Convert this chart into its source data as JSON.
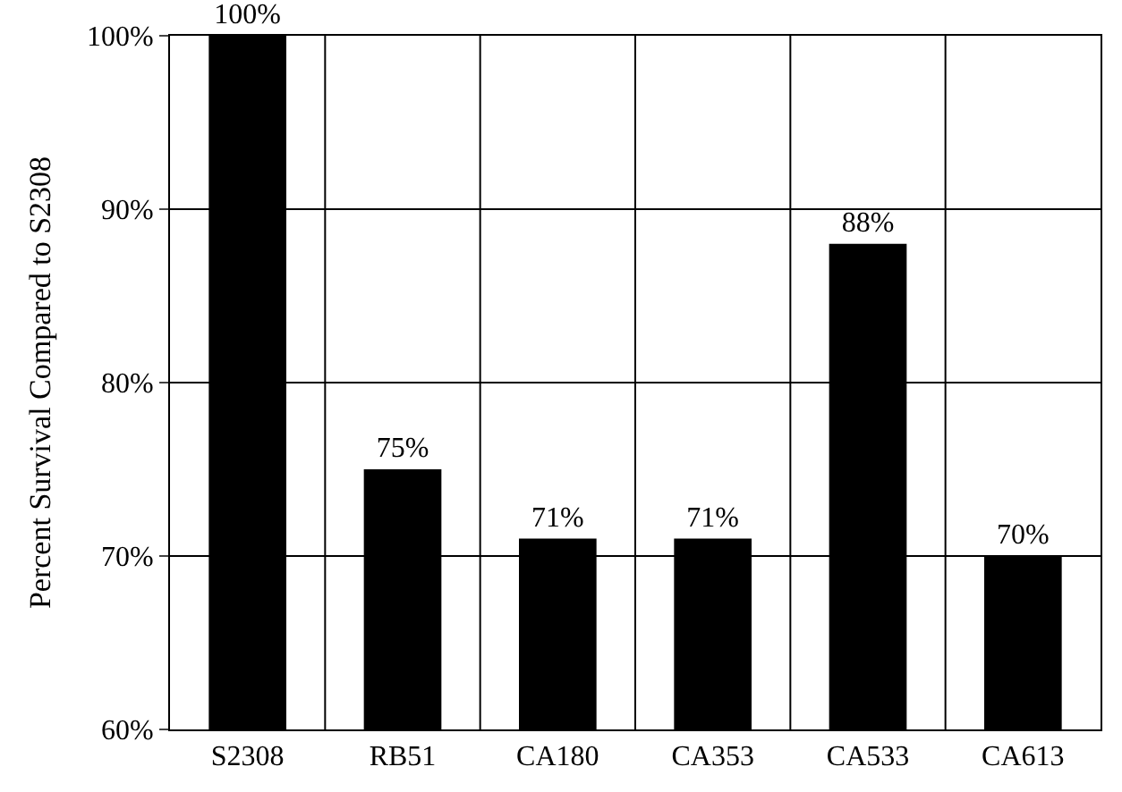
{
  "chart_data": {
    "type": "bar",
    "ylabel": "Percent Survival Compared to S2308",
    "categories": [
      "S2308",
      "RB51",
      "CA180",
      "CA353",
      "CA533",
      "CA613"
    ],
    "values": [
      100,
      75,
      71,
      71,
      88,
      70
    ],
    "value_labels": [
      "100%",
      "75%",
      "71%",
      "71%",
      "88%",
      "70%"
    ],
    "color": "#000000",
    "ylim": [
      60,
      100
    ],
    "yticks": [
      {
        "value": 60,
        "label": "60%"
      },
      {
        "value": 70,
        "label": "70%"
      },
      {
        "value": 80,
        "label": "80%"
      },
      {
        "value": 90,
        "label": "90%"
      },
      {
        "value": 100,
        "label": "100%"
      }
    ],
    "grid": true,
    "legend": false
  }
}
